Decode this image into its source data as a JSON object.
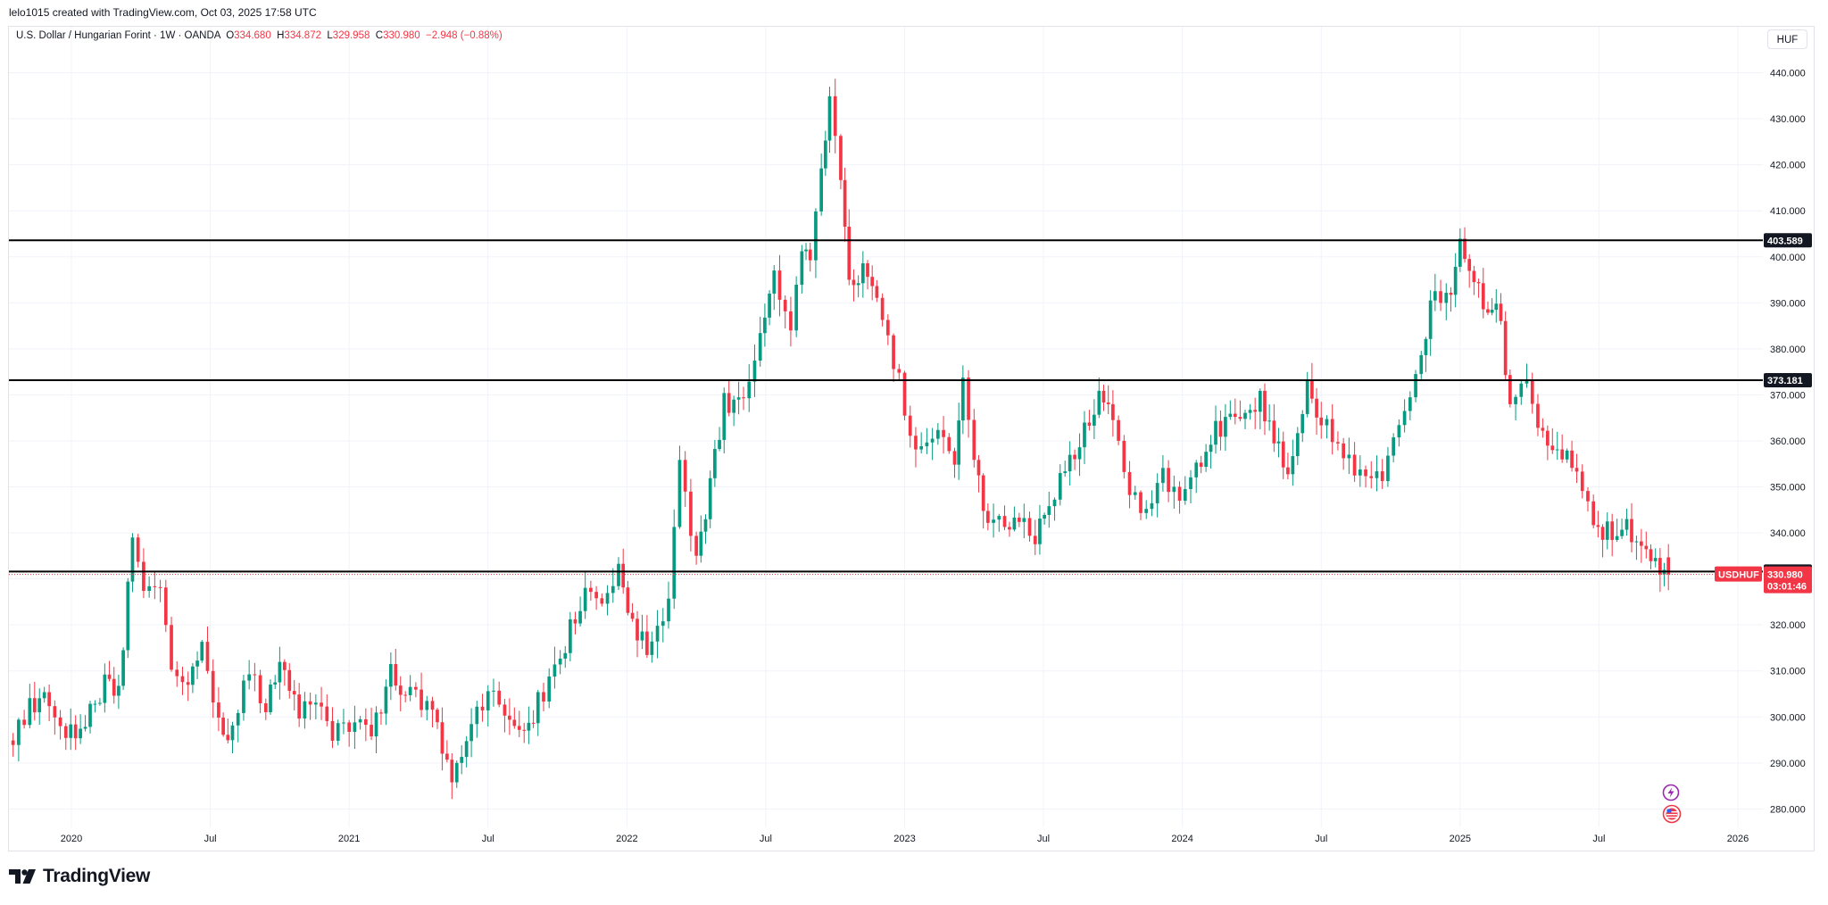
{
  "attribution": "lelo1015 created with TradingView.com, Oct 03, 2025 17:58 UTC",
  "legend": {
    "symbol": "U.S. Dollar / Hungarian Forint · 1W · OANDA",
    "o_label": "O",
    "o_value": "334.680",
    "h_label": "H",
    "h_value": "334.872",
    "l_label": "L",
    "l_value": "329.958",
    "c_label": "C",
    "c_value": "330.980",
    "change": "−2.948 (−0.88%)"
  },
  "currency_button": "HUF",
  "brand": "TradingView",
  "colors": {
    "up": "#089981",
    "down": "#f23645",
    "grid": "#f0f3fa",
    "level": "#000000"
  },
  "icons": [
    "lightning-icon",
    "us-flag-icon",
    "tradingview-logo-icon"
  ],
  "chart_data": {
    "type": "candlestick",
    "ylim": [
      276,
      450
    ],
    "y_ticks": [
      "280.000",
      "290.000",
      "300.000",
      "310.000",
      "320.000",
      "330.000",
      "340.000",
      "350.000",
      "360.000",
      "370.000",
      "380.000",
      "390.000",
      "400.000",
      "410.000",
      "420.000",
      "430.000",
      "440.000"
    ],
    "x_ticks": [
      {
        "label": "2020",
        "t": 2020.0
      },
      {
        "label": "Jul",
        "t": 2020.5
      },
      {
        "label": "2021",
        "t": 2021.0
      },
      {
        "label": "Jul",
        "t": 2021.5
      },
      {
        "label": "2022",
        "t": 2022.0
      },
      {
        "label": "Jul",
        "t": 2022.5
      },
      {
        "label": "2023",
        "t": 2023.0
      },
      {
        "label": "Jul",
        "t": 2023.5
      },
      {
        "label": "2024",
        "t": 2024.0
      },
      {
        "label": "Jul",
        "t": 2024.5
      },
      {
        "label": "2025",
        "t": 2025.0
      },
      {
        "label": "Jul",
        "t": 2025.5
      },
      {
        "label": "2026",
        "t": 2026.0
      }
    ],
    "levels": [
      {
        "label": "403.589",
        "value": 403.589
      },
      {
        "label": "373.181",
        "value": 373.181
      },
      {
        "label": "331.591",
        "value": 331.591
      }
    ],
    "current": {
      "symbol": "USDHUF",
      "price": "330.980",
      "countdown": "03:01:46",
      "value": 330.98
    },
    "anchors": [
      [
        2019.79,
        296
      ],
      [
        2019.85,
        303
      ],
      [
        2019.92,
        304
      ],
      [
        2019.98,
        297
      ],
      [
        2020.05,
        298
      ],
      [
        2020.12,
        308
      ],
      [
        2020.17,
        306
      ],
      [
        2020.22,
        338
      ],
      [
        2020.26,
        326
      ],
      [
        2020.32,
        330
      ],
      [
        2020.36,
        312
      ],
      [
        2020.42,
        306
      ],
      [
        2020.47,
        317
      ],
      [
        2020.53,
        298
      ],
      [
        2020.58,
        297
      ],
      [
        2020.64,
        310
      ],
      [
        2020.7,
        302
      ],
      [
        2020.75,
        314
      ],
      [
        2020.82,
        302
      ],
      [
        2020.88,
        302
      ],
      [
        2020.94,
        296
      ],
      [
        2021.02,
        297
      ],
      [
        2021.08,
        297
      ],
      [
        2021.15,
        309
      ],
      [
        2021.22,
        305
      ],
      [
        2021.3,
        300
      ],
      [
        2021.37,
        286
      ],
      [
        2021.44,
        300
      ],
      [
        2021.5,
        305
      ],
      [
        2021.56,
        300
      ],
      [
        2021.63,
        297
      ],
      [
        2021.68,
        303
      ],
      [
        2021.76,
        313
      ],
      [
        2021.85,
        328
      ],
      [
        2021.91,
        327
      ],
      [
        2021.97,
        331
      ],
      [
        2022.02,
        320
      ],
      [
        2022.09,
        314
      ],
      [
        2022.15,
        327
      ],
      [
        2022.19,
        354
      ],
      [
        2022.25,
        334
      ],
      [
        2022.3,
        350
      ],
      [
        2022.35,
        368
      ],
      [
        2022.42,
        370
      ],
      [
        2022.48,
        384
      ],
      [
        2022.53,
        397
      ],
      [
        2022.59,
        385
      ],
      [
        2022.63,
        401
      ],
      [
        2022.66,
        398
      ],
      [
        2022.7,
        420
      ],
      [
        2022.73,
        435
      ],
      [
        2022.77,
        418
      ],
      [
        2022.8,
        395
      ],
      [
        2022.85,
        397
      ],
      [
        2022.9,
        390
      ],
      [
        2022.96,
        378
      ],
      [
        2023.02,
        362
      ],
      [
        2023.06,
        358
      ],
      [
        2023.12,
        360
      ],
      [
        2023.18,
        355
      ],
      [
        2023.21,
        372
      ],
      [
        2023.25,
        357
      ],
      [
        2023.3,
        342
      ],
      [
        2023.36,
        341
      ],
      [
        2023.43,
        344
      ],
      [
        2023.47,
        339
      ],
      [
        2023.52,
        345
      ],
      [
        2023.56,
        352
      ],
      [
        2023.63,
        359
      ],
      [
        2023.7,
        370
      ],
      [
        2023.75,
        367
      ],
      [
        2023.81,
        350
      ],
      [
        2023.87,
        345
      ],
      [
        2023.93,
        352
      ],
      [
        2023.99,
        346
      ],
      [
        2024.05,
        355
      ],
      [
        2024.12,
        362
      ],
      [
        2024.19,
        366
      ],
      [
        2024.28,
        369
      ],
      [
        2024.33,
        360
      ],
      [
        2024.38,
        354
      ],
      [
        2024.45,
        372
      ],
      [
        2024.5,
        364
      ],
      [
        2024.56,
        360
      ],
      [
        2024.64,
        352
      ],
      [
        2024.72,
        353
      ],
      [
        2024.78,
        364
      ],
      [
        2024.82,
        370
      ],
      [
        2024.86,
        380
      ],
      [
        2024.91,
        393
      ],
      [
        2024.95,
        390
      ],
      [
        2025.0,
        402
      ],
      [
        2025.05,
        396
      ],
      [
        2025.1,
        388
      ],
      [
        2025.13,
        392
      ],
      [
        2025.18,
        369
      ],
      [
        2025.24,
        372
      ],
      [
        2025.28,
        362
      ],
      [
        2025.35,
        358
      ],
      [
        2025.42,
        355
      ],
      [
        2025.48,
        340
      ],
      [
        2025.53,
        340
      ],
      [
        2025.6,
        341
      ],
      [
        2025.67,
        337
      ],
      [
        2025.72,
        333
      ],
      [
        2025.75,
        330.98
      ]
    ]
  }
}
